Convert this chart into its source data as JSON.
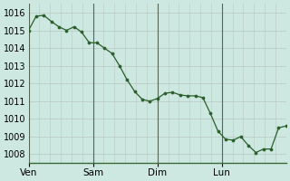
{
  "background_color": "#cce8e0",
  "grid_color_major": "#b8c8c0",
  "grid_color_minor": "#d8e8e0",
  "line_color": "#2a5e2a",
  "marker_color": "#2a5e2a",
  "ylim": [
    1007.5,
    1016.5
  ],
  "yticks": [
    1008,
    1009,
    1010,
    1011,
    1012,
    1013,
    1014,
    1015,
    1016
  ],
  "day_labels": [
    "Ven",
    "Sam",
    "Dim",
    "Lun"
  ],
  "pressure": [
    1015.0,
    1015.8,
    1015.85,
    1015.5,
    1015.2,
    1015.0,
    1015.2,
    1014.9,
    1014.3,
    1014.3,
    1014.0,
    1013.7,
    1013.0,
    1012.2,
    1011.55,
    1011.1,
    1011.0,
    1011.15,
    1011.45,
    1011.5,
    1011.35,
    1011.3,
    1011.3,
    1011.2,
    1010.3,
    1009.3,
    1008.85,
    1008.8,
    1009.0,
    1008.5,
    1008.1,
    1008.3,
    1008.3,
    1009.5,
    1009.6
  ],
  "n_days": 4,
  "tick_fontsize": 7,
  "xlabel_fontsize": 7.5,
  "bottom_color": "#3a6a3a",
  "vline_color": "#556655"
}
